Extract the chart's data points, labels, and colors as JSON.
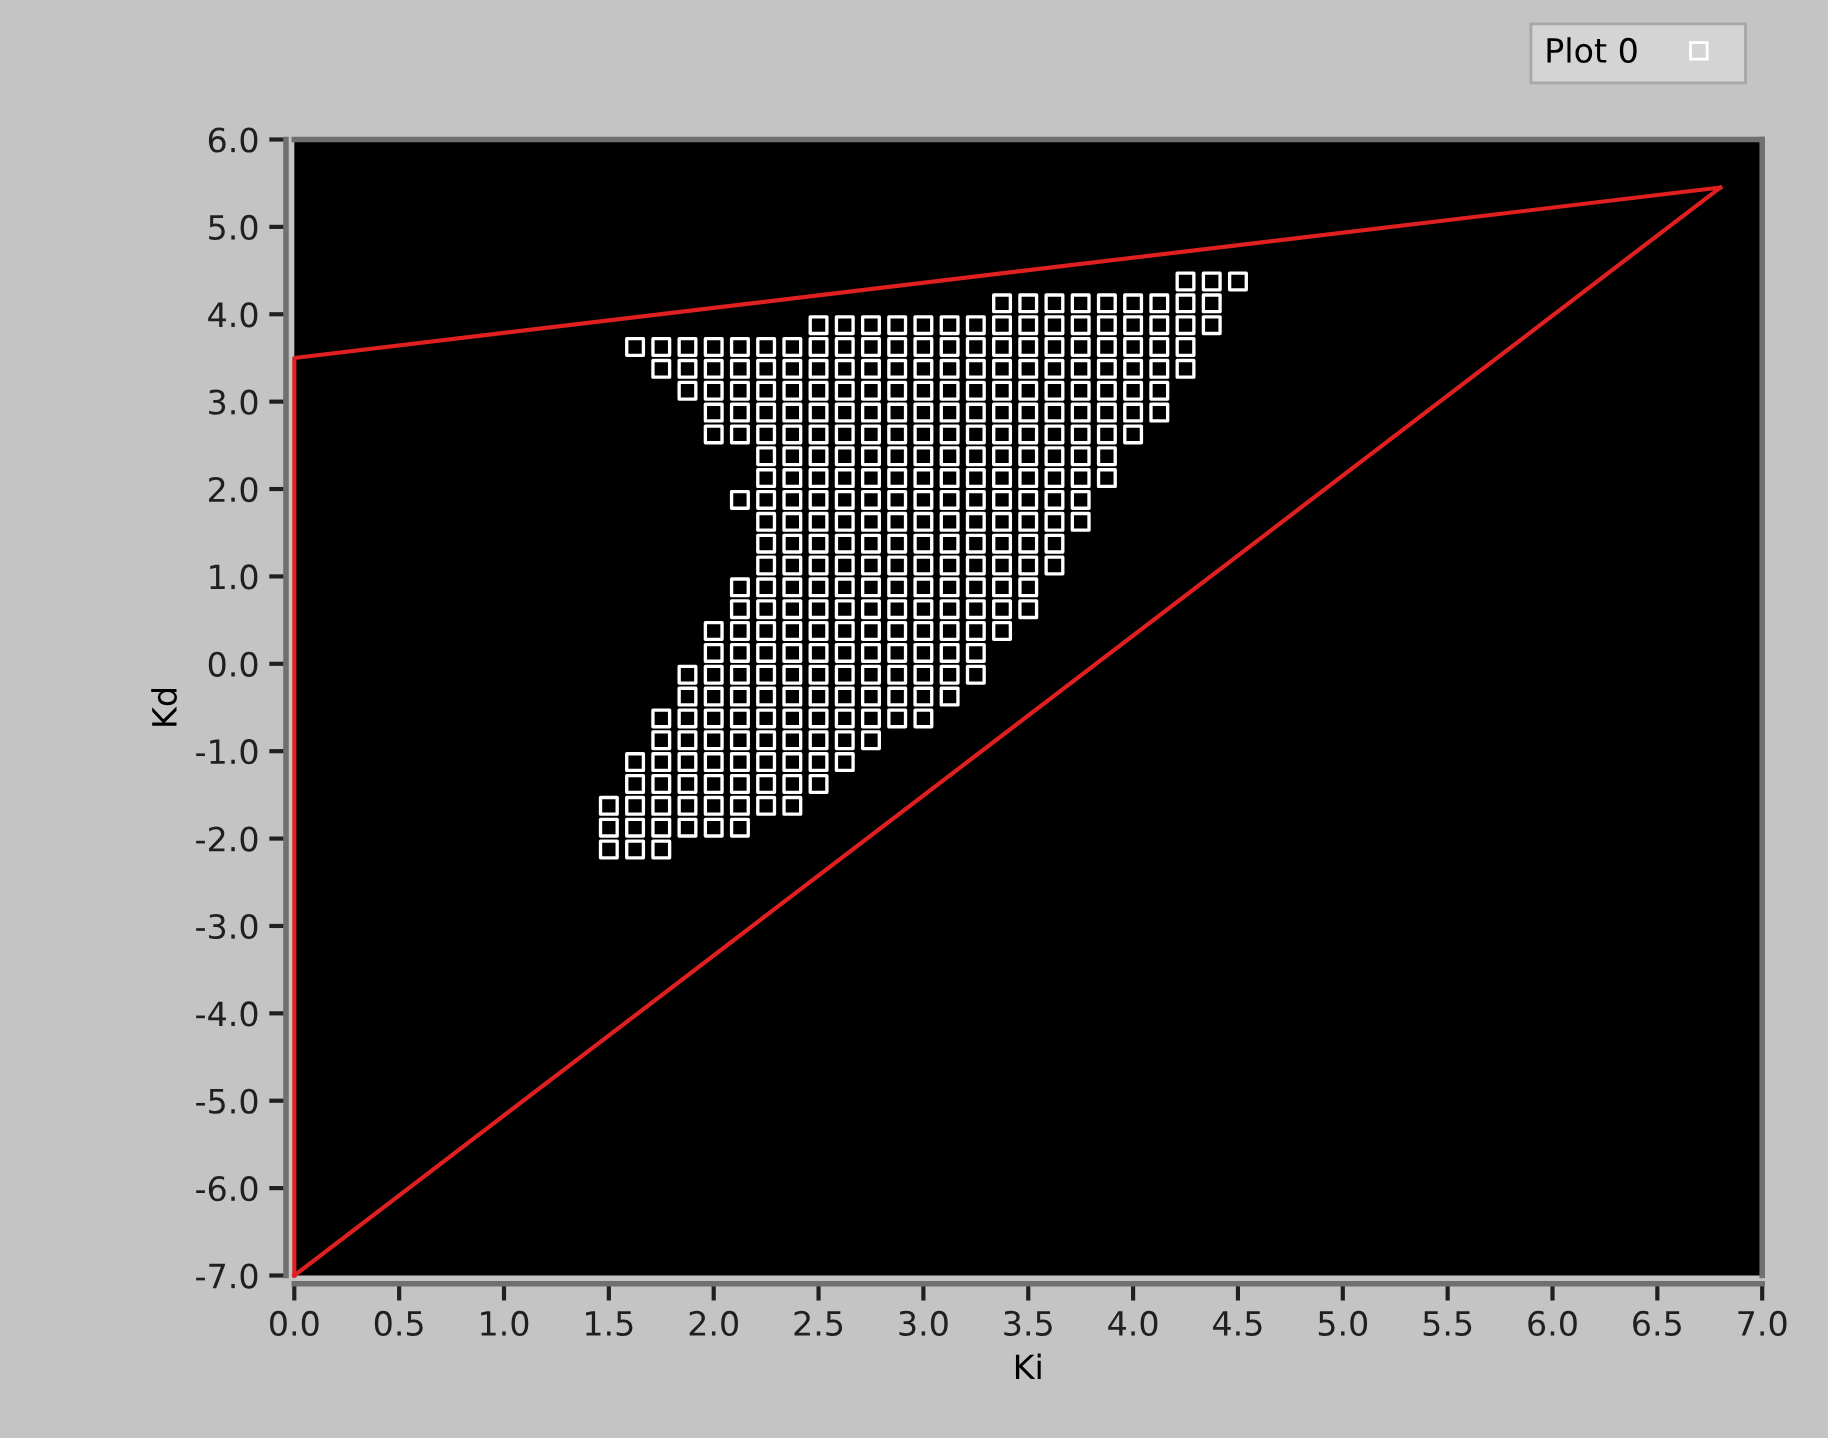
{
  "chart_data": {
    "type": "scatter",
    "xlabel": "Ki",
    "ylabel": "Kd",
    "xlim": [
      0,
      7
    ],
    "ylim": [
      -7,
      6
    ],
    "xticks": [
      {
        "value": 0,
        "label": "0.0"
      },
      {
        "value": 0.5,
        "label": "0.5"
      },
      {
        "value": 1,
        "label": "1.0"
      },
      {
        "value": 1.5,
        "label": "1.5"
      },
      {
        "value": 2,
        "label": "2.0"
      },
      {
        "value": 2.5,
        "label": "2.5"
      },
      {
        "value": 3,
        "label": "3.0"
      },
      {
        "value": 3.5,
        "label": "3.5"
      },
      {
        "value": 4,
        "label": "4.0"
      },
      {
        "value": 4.5,
        "label": "4.5"
      },
      {
        "value": 5,
        "label": "5.0"
      },
      {
        "value": 5.5,
        "label": "5.5"
      },
      {
        "value": 6,
        "label": "6.0"
      },
      {
        "value": 6.5,
        "label": "6.5"
      },
      {
        "value": 7,
        "label": "7.0"
      }
    ],
    "yticks": [
      {
        "value": -7,
        "label": "-7.0"
      },
      {
        "value": -6,
        "label": "-6.0"
      },
      {
        "value": -5,
        "label": "-5.0"
      },
      {
        "value": -4,
        "label": "-4.0"
      },
      {
        "value": -3,
        "label": "-3.0"
      },
      {
        "value": -2,
        "label": "-2.0"
      },
      {
        "value": -1,
        "label": "-1.0"
      },
      {
        "value": 0,
        "label": "0.0"
      },
      {
        "value": 1,
        "label": "1.0"
      },
      {
        "value": 2,
        "label": "2.0"
      },
      {
        "value": 3,
        "label": "3.0"
      },
      {
        "value": 4,
        "label": "4.0"
      },
      {
        "value": 5,
        "label": "5.0"
      },
      {
        "value": 6,
        "label": "6.0"
      }
    ],
    "grid": false,
    "legend": "top right",
    "series": [
      {
        "name": "Plot 0",
        "color": "#ffffff",
        "marker": "square",
        "x": [
          1.5,
          1.5,
          1.5,
          1.625,
          1.625,
          1.625,
          1.625,
          1.625,
          1.625,
          1.75,
          1.75,
          1.75,
          1.75,
          1.75,
          1.75,
          1.75,
          1.75,
          1.75,
          1.875,
          1.875,
          1.875,
          1.875,
          1.875,
          1.875,
          1.875,
          1.875,
          1.875,
          1.875,
          1.875,
          2.0,
          2.0,
          2.0,
          2.0,
          2.0,
          2.0,
          2.0,
          2.0,
          2.0,
          2.0,
          2.0,
          2.0,
          2.0,
          2.0,
          2.0,
          2.125,
          2.125,
          2.125,
          2.125,
          2.125,
          2.125,
          2.125,
          2.125,
          2.125,
          2.125,
          2.125,
          2.125,
          2.125,
          2.125,
          2.125,
          2.125,
          2.125,
          2.125,
          2.25,
          2.25,
          2.25,
          2.25,
          2.25,
          2.25,
          2.25,
          2.25,
          2.25,
          2.25,
          2.25,
          2.25,
          2.25,
          2.25,
          2.25,
          2.25,
          2.25,
          2.25,
          2.25,
          2.25,
          2.25,
          2.25,
          2.375,
          2.375,
          2.375,
          2.375,
          2.375,
          2.375,
          2.375,
          2.375,
          2.375,
          2.375,
          2.375,
          2.375,
          2.375,
          2.375,
          2.375,
          2.375,
          2.375,
          2.375,
          2.375,
          2.375,
          2.375,
          2.375,
          2.5,
          2.5,
          2.5,
          2.5,
          2.5,
          2.5,
          2.5,
          2.5,
          2.5,
          2.5,
          2.5,
          2.5,
          2.5,
          2.5,
          2.5,
          2.5,
          2.5,
          2.5,
          2.5,
          2.5,
          2.5,
          2.5,
          2.625,
          2.625,
          2.625,
          2.625,
          2.625,
          2.625,
          2.625,
          2.625,
          2.625,
          2.625,
          2.625,
          2.625,
          2.625,
          2.625,
          2.625,
          2.625,
          2.625,
          2.625,
          2.625,
          2.625,
          2.625,
          2.75,
          2.75,
          2.75,
          2.75,
          2.75,
          2.75,
          2.75,
          2.75,
          2.75,
          2.75,
          2.75,
          2.75,
          2.75,
          2.75,
          2.75,
          2.75,
          2.75,
          2.75,
          2.75,
          2.75,
          2.875,
          2.875,
          2.875,
          2.875,
          2.875,
          2.875,
          2.875,
          2.875,
          2.875,
          2.875,
          2.875,
          2.875,
          2.875,
          2.875,
          2.875,
          2.875,
          2.875,
          2.875,
          2.875,
          3.0,
          3.0,
          3.0,
          3.0,
          3.0,
          3.0,
          3.0,
          3.0,
          3.0,
          3.0,
          3.0,
          3.0,
          3.0,
          3.0,
          3.0,
          3.0,
          3.0,
          3.0,
          3.0,
          3.125,
          3.125,
          3.125,
          3.125,
          3.125,
          3.125,
          3.125,
          3.125,
          3.125,
          3.125,
          3.125,
          3.125,
          3.125,
          3.125,
          3.125,
          3.125,
          3.125,
          3.125,
          3.25,
          3.25,
          3.25,
          3.25,
          3.25,
          3.25,
          3.25,
          3.25,
          3.25,
          3.25,
          3.25,
          3.25,
          3.25,
          3.25,
          3.25,
          3.25,
          3.25,
          3.375,
          3.375,
          3.375,
          3.375,
          3.375,
          3.375,
          3.375,
          3.375,
          3.375,
          3.375,
          3.375,
          3.375,
          3.375,
          3.375,
          3.375,
          3.375,
          3.5,
          3.5,
          3.5,
          3.5,
          3.5,
          3.5,
          3.5,
          3.5,
          3.5,
          3.5,
          3.5,
          3.5,
          3.5,
          3.5,
          3.5,
          3.625,
          3.625,
          3.625,
          3.625,
          3.625,
          3.625,
          3.625,
          3.625,
          3.625,
          3.625,
          3.625,
          3.625,
          3.625,
          3.75,
          3.75,
          3.75,
          3.75,
          3.75,
          3.75,
          3.75,
          3.75,
          3.75,
          3.75,
          3.75,
          3.875,
          3.875,
          3.875,
          3.875,
          3.875,
          3.875,
          3.875,
          3.875,
          3.875,
          4.0,
          4.0,
          4.0,
          4.0,
          4.0,
          4.0,
          4.0,
          4.125,
          4.125,
          4.125,
          4.125,
          4.125,
          4.125,
          4.25,
          4.25,
          4.25,
          4.25,
          4.25,
          4.375,
          4.375,
          4.375,
          4.5
        ],
        "values": [
          -2.125,
          -1.875,
          -1.625,
          -2.125,
          -1.875,
          -1.625,
          -1.375,
          -1.125,
          3.625,
          -2.125,
          -1.875,
          -1.625,
          -1.375,
          -1.125,
          -0.875,
          -0.625,
          3.375,
          3.625,
          -1.875,
          -1.625,
          -1.375,
          -1.125,
          -0.875,
          -0.625,
          -0.375,
          -0.125,
          3.125,
          3.375,
          3.625,
          -1.875,
          -1.625,
          -1.375,
          -1.125,
          -0.875,
          -0.625,
          -0.375,
          -0.125,
          0.125,
          0.375,
          2.625,
          2.875,
          3.125,
          3.375,
          3.625,
          -1.875,
          -1.625,
          -1.375,
          -1.125,
          -0.875,
          -0.625,
          -0.375,
          -0.125,
          0.125,
          0.375,
          0.625,
          0.875,
          1.875,
          2.625,
          2.875,
          3.125,
          3.375,
          3.625,
          -1.625,
          -1.375,
          -1.125,
          -0.875,
          -0.625,
          -0.375,
          -0.125,
          0.125,
          0.375,
          0.625,
          0.875,
          1.125,
          1.375,
          1.625,
          1.875,
          2.125,
          2.375,
          2.625,
          2.875,
          3.125,
          3.375,
          3.625,
          -1.625,
          -1.375,
          -1.125,
          -0.875,
          -0.625,
          -0.375,
          -0.125,
          0.125,
          0.375,
          0.625,
          0.875,
          1.125,
          1.375,
          1.625,
          1.875,
          2.125,
          2.375,
          2.625,
          2.875,
          3.125,
          3.375,
          3.625,
          -1.375,
          -1.125,
          -0.875,
          -0.625,
          -0.375,
          -0.125,
          0.125,
          0.375,
          0.625,
          0.875,
          1.125,
          1.375,
          1.625,
          1.875,
          2.125,
          2.375,
          2.625,
          2.875,
          3.125,
          3.375,
          3.625,
          3.875,
          -1.125,
          -0.875,
          -0.625,
          -0.375,
          -0.125,
          0.125,
          0.375,
          0.625,
          0.875,
          1.125,
          1.375,
          1.625,
          1.875,
          2.125,
          2.375,
          2.625,
          2.875,
          3.125,
          3.375,
          3.625,
          3.875,
          -0.875,
          -0.625,
          -0.375,
          -0.125,
          0.125,
          0.375,
          0.625,
          0.875,
          1.125,
          1.375,
          1.625,
          1.875,
          2.125,
          2.375,
          2.625,
          2.875,
          3.125,
          3.375,
          3.625,
          3.875,
          -0.625,
          -0.375,
          -0.125,
          0.125,
          0.375,
          0.625,
          0.875,
          1.125,
          1.375,
          1.625,
          1.875,
          2.125,
          2.375,
          2.625,
          2.875,
          3.125,
          3.375,
          3.625,
          3.875,
          -0.625,
          -0.375,
          -0.125,
          0.125,
          0.375,
          0.625,
          0.875,
          1.125,
          1.375,
          1.625,
          1.875,
          2.125,
          2.375,
          2.625,
          2.875,
          3.125,
          3.375,
          3.625,
          3.875,
          -0.375,
          -0.125,
          0.125,
          0.375,
          0.625,
          0.875,
          1.125,
          1.375,
          1.625,
          1.875,
          2.125,
          2.375,
          2.625,
          2.875,
          3.125,
          3.375,
          3.625,
          3.875,
          -0.125,
          0.125,
          0.375,
          0.625,
          0.875,
          1.125,
          1.375,
          1.625,
          1.875,
          2.125,
          2.375,
          2.625,
          2.875,
          3.125,
          3.375,
          3.625,
          3.875,
          0.375,
          0.625,
          0.875,
          1.125,
          1.375,
          1.625,
          1.875,
          2.125,
          2.375,
          2.625,
          2.875,
          3.125,
          3.375,
          3.625,
          3.875,
          4.125,
          0.625,
          0.875,
          1.125,
          1.375,
          1.625,
          1.875,
          2.125,
          2.375,
          2.625,
          2.875,
          3.125,
          3.375,
          3.625,
          3.875,
          4.125,
          1.125,
          1.375,
          1.625,
          1.875,
          2.125,
          2.375,
          2.625,
          2.875,
          3.125,
          3.375,
          3.625,
          3.875,
          4.125,
          1.625,
          1.875,
          2.125,
          2.375,
          2.625,
          2.875,
          3.125,
          3.375,
          3.625,
          3.875,
          4.125,
          2.125,
          2.375,
          2.625,
          2.875,
          3.125,
          3.375,
          3.625,
          3.875,
          4.125,
          2.625,
          2.875,
          3.125,
          3.375,
          3.625,
          3.875,
          4.125,
          2.875,
          3.125,
          3.375,
          3.625,
          3.875,
          4.125,
          3.375,
          3.625,
          3.875,
          4.125,
          4.375,
          3.875,
          4.125,
          4.375,
          4.375
        ]
      },
      {
        "type": "line",
        "color": "#e02020",
        "line_style": "solid",
        "marker": "none",
        "x": [
          0,
          0,
          6.8
        ],
        "values": [
          -7,
          3.5,
          5.45
        ]
      },
      {
        "type": "line",
        "color": "#e02020",
        "line_style": "solid",
        "marker": "none",
        "x": [
          0,
          6.8
        ],
        "values": [
          -7,
          5.45
        ]
      }
    ]
  }
}
